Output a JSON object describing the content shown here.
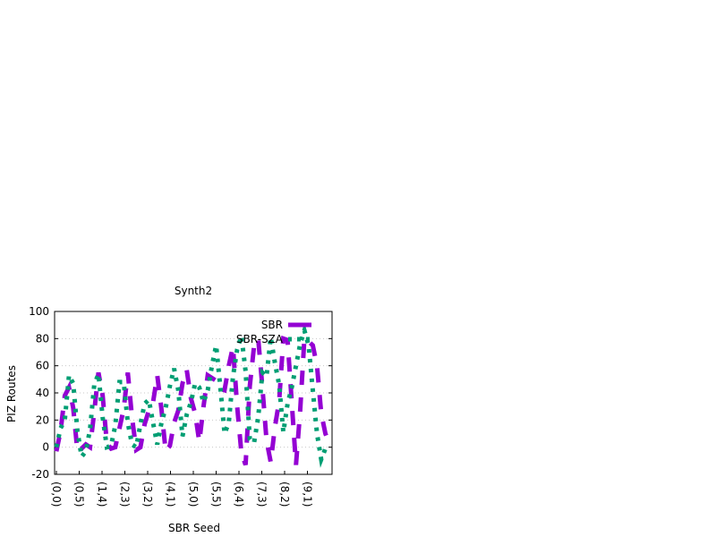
{
  "chart_data": {
    "type": "line",
    "title": "Synth2",
    "xlabel": "SBR Seed",
    "ylabel": "PIZ Routes",
    "ylim": [
      -20,
      100
    ],
    "yticks": [
      -20,
      0,
      20,
      40,
      60,
      80,
      100
    ],
    "grid": "horizontal dotted",
    "legend_position": "top-right",
    "x_tick_labels": [
      "(0,0)",
      "(0,5)",
      "(1,4)",
      "(2,3)",
      "(3,2)",
      "(4,1)",
      "(5,0)",
      "(5,5)",
      "(6,4)",
      "(7,3)",
      "(8,2)",
      "(9,1)"
    ],
    "x_count": 66,
    "series": [
      {
        "name": "SBR",
        "color": "#9400d3",
        "style": "dashed-thick",
        "values": [
          -3,
          12,
          38,
          44,
          29,
          -3,
          -1,
          2,
          0,
          26,
          55,
          38,
          3,
          -1,
          0,
          14,
          28,
          55,
          22,
          -2,
          0,
          17,
          27,
          33,
          53,
          28,
          -3,
          1,
          18,
          27,
          47,
          57,
          36,
          25,
          4,
          30,
          53,
          51,
          49,
          43,
          42,
          60,
          74,
          30,
          -4,
          -13,
          45,
          74,
          80,
          44,
          5,
          -11,
          15,
          34,
          80,
          79,
          33,
          -13,
          27,
          80,
          78,
          75,
          60,
          25,
          10,
          2
        ]
      },
      {
        "name": "SBR-SZA",
        "color": "#009e73",
        "style": "dotted-thick",
        "values": [
          0,
          14,
          20,
          53,
          47,
          12,
          -7,
          -3,
          13,
          46,
          54,
          22,
          0,
          1,
          16,
          48,
          48,
          18,
          2,
          0,
          17,
          32,
          35,
          18,
          2,
          18,
          29,
          45,
          58,
          42,
          8,
          24,
          33,
          47,
          44,
          33,
          42,
          60,
          75,
          44,
          10,
          18,
          52,
          72,
          82,
          56,
          6,
          3,
          22,
          55,
          52,
          81,
          62,
          46,
          11,
          32,
          44,
          60,
          76,
          86,
          75,
          42,
          10,
          -9,
          -1,
          0
        ]
      }
    ]
  }
}
